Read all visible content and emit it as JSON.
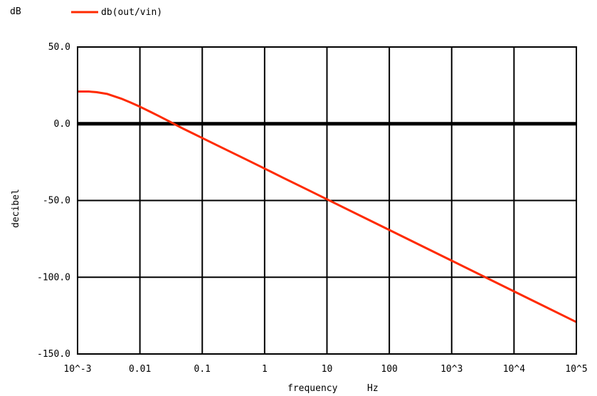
{
  "chart_data": {
    "type": "line",
    "unit_label": "dB",
    "ylabel": "decibel",
    "xlabel": "frequency",
    "xunit": "Hz",
    "xscale": "log",
    "xlim": [
      0.001,
      100000
    ],
    "ylim": [
      -150,
      50
    ],
    "yticks": [
      {
        "value": 50,
        "label": "50.0"
      },
      {
        "value": 0,
        "label": "0.0"
      },
      {
        "value": -50,
        "label": "-50.0"
      },
      {
        "value": -100,
        "label": "-100.0"
      },
      {
        "value": -150,
        "label": "-150.0"
      }
    ],
    "xticks": [
      {
        "value": 0.001,
        "label": "10^-3"
      },
      {
        "value": 0.01,
        "label": "0.01"
      },
      {
        "value": 0.1,
        "label": "0.1"
      },
      {
        "value": 1,
        "label": "1"
      },
      {
        "value": 10,
        "label": "10"
      },
      {
        "value": 100,
        "label": "100"
      },
      {
        "value": 1000,
        "label": "10^3"
      },
      {
        "value": 10000,
        "label": "10^4"
      },
      {
        "value": 100000,
        "label": "10^5"
      }
    ],
    "grid": true,
    "legend_position": "top-left",
    "series": [
      {
        "name": "db(out/vin)",
        "color": "#ff2a00",
        "x": [
          0.001,
          0.0015,
          0.002,
          0.003,
          0.005,
          0.007,
          0.01,
          0.015,
          0.02,
          0.03,
          0.05,
          0.07,
          0.1,
          0.2,
          0.5,
          1,
          2,
          5,
          10,
          100,
          1000,
          10000,
          100000
        ],
        "y": [
          21.0,
          21.0,
          20.6,
          19.4,
          16.4,
          13.9,
          11.1,
          7.6,
          5.1,
          1.4,
          -3.3,
          -6.2,
          -9.3,
          -15.3,
          -23.2,
          -29.2,
          -35.3,
          -43.2,
          -49.2,
          -69.2,
          -89.2,
          -109.2,
          -129.2
        ]
      }
    ]
  }
}
